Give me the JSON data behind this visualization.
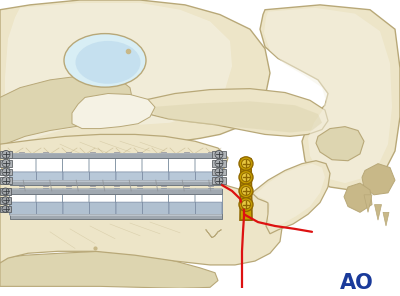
{
  "bg_color": "#ffffff",
  "bone_color": "#ede5c8",
  "bone_light": "#f5f2e4",
  "bone_mid": "#ddd5b0",
  "bone_dark": "#c8b888",
  "bone_outline": "#b8a878",
  "tooth_white": "#f0f0f5",
  "tooth_blue": "#c0ccd8",
  "arch_bar_gray": "#a0a8b0",
  "arch_bar_dark": "#707880",
  "arch_bar_light": "#d0d8e0",
  "screw_gray": "#909098",
  "screw_dark": "#505058",
  "gold_plate": "#c8a000",
  "gold_dark": "#906800",
  "gold_light": "#e8c840",
  "fracture_red": "#dd1111",
  "ao_blue": "#1a3a9a",
  "white": "#ffffff",
  "gum_line": "#c8b898"
}
